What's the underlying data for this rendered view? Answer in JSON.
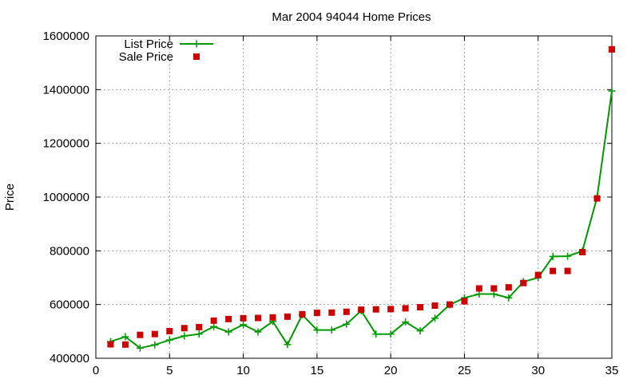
{
  "chart_data": {
    "type": "line",
    "title": "Mar 2004 94044 Home Prices",
    "xlabel": "",
    "ylabel": "Price",
    "xlim": [
      0,
      35
    ],
    "ylim": [
      400000,
      1600000
    ],
    "x_ticks": [
      "0",
      "5",
      "10",
      "15",
      "20",
      "25",
      "30",
      "35"
    ],
    "y_ticks": [
      "400000",
      "600000",
      "800000",
      "1000000",
      "1200000",
      "1400000",
      "1600000"
    ],
    "grid": true,
    "legend_position": "top-left",
    "series": [
      {
        "name": "List Price",
        "style": "line-with-plus-markers",
        "color": "#009900",
        "x": [
          1,
          2,
          3,
          4,
          5,
          6,
          7,
          8,
          9,
          10,
          11,
          12,
          13,
          14,
          15,
          16,
          17,
          18,
          19,
          20,
          21,
          22,
          23,
          24,
          25,
          26,
          27,
          28,
          29,
          30,
          31,
          32,
          33,
          34,
          35
        ],
        "y": [
          462000,
          480000,
          438000,
          450000,
          468000,
          483000,
          490000,
          518000,
          498000,
          525000,
          498000,
          537000,
          451000,
          562000,
          505000,
          505000,
          527000,
          577000,
          490000,
          490000,
          535000,
          502000,
          549000,
          599000,
          625000,
          639000,
          639000,
          625000,
          685000,
          700000,
          779000,
          780000,
          799000,
          999000,
          1395000
        ]
      },
      {
        "name": "Sale Price",
        "style": "square-markers",
        "color": "#cc0000",
        "x": [
          1,
          2,
          3,
          4,
          5,
          6,
          7,
          8,
          9,
          10,
          11,
          12,
          13,
          14,
          15,
          16,
          17,
          18,
          19,
          20,
          21,
          22,
          23,
          24,
          25,
          26,
          27,
          28,
          29,
          30,
          31,
          32,
          33,
          34,
          35
        ],
        "y": [
          452000,
          451000,
          487000,
          490000,
          501000,
          512000,
          516000,
          540000,
          546000,
          549000,
          550000,
          552000,
          555000,
          564000,
          569000,
          570000,
          573000,
          581000,
          582000,
          583000,
          586000,
          590000,
          596000,
          600000,
          612000,
          660000,
          660000,
          664000,
          680000,
          710000,
          725000,
          725000,
          795000,
          995000,
          1550000
        ]
      }
    ]
  }
}
